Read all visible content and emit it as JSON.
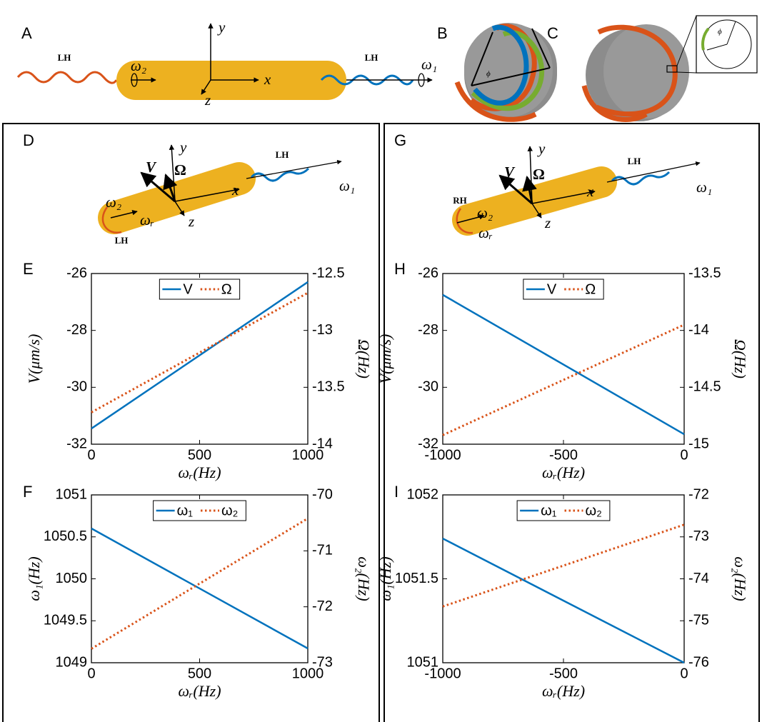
{
  "figure": {
    "panel_labels": [
      "A",
      "B",
      "C",
      "D",
      "E",
      "F",
      "G",
      "H",
      "I"
    ],
    "panel_a": {
      "left_helix": "LH",
      "right_helix": "LH",
      "omega_2": "ω₂",
      "omega_1": "ω₁",
      "x": "x",
      "y": "y",
      "z": "z"
    },
    "panel_b": {
      "phi": "ϕ"
    },
    "panel_c": {
      "phi": "ϕ"
    },
    "panel_d": {
      "y": "y",
      "x": "x",
      "z": "z",
      "v": "V",
      "omega": "Ω",
      "right_helix": "LH",
      "omega_1": "ω₁",
      "omega_2": "ω₂",
      "omega_r": "ωᵣ",
      "left_helix": "LH"
    },
    "panel_g": {
      "y": "y",
      "x": "x",
      "z": "z",
      "v": "V",
      "omega": "Ω",
      "right_helix": "LH",
      "omega_1": "ω₁",
      "omega_2": "ω₂",
      "omega_r": "ωᵣ",
      "left_helix": "RH"
    }
  },
  "chart_data": [
    {
      "type": "line",
      "x": [
        0,
        1000
      ],
      "xlabel": "ωᵣ(Hz)",
      "ylabel": "V(μm/s)",
      "y2label": "Ω(Hz)",
      "xlim": [
        0,
        1000
      ],
      "xticks": [
        0,
        500,
        1000
      ],
      "ylim": [
        -32,
        -26
      ],
      "yticks": [
        -32,
        -30,
        -28,
        -26
      ],
      "y2lim": [
        -14,
        -12.5
      ],
      "y2ticks": [
        -14,
        -13.5,
        -13,
        -12.5
      ],
      "legend": "upper center",
      "series": [
        {
          "name": "V",
          "color": "#0072bd",
          "values": [
            -31.45,
            -26.3
          ]
        },
        {
          "name": "Ω",
          "color": "#d95319",
          "axis": "y2",
          "style": "dotted",
          "values": [
            -13.72,
            -12.67
          ]
        }
      ]
    },
    {
      "type": "line",
      "x": [
        0,
        1000
      ],
      "xlabel": "ωᵣ(Hz)",
      "ylabel": "ω₁(Hz)",
      "y2label": "ω₂(Hz)",
      "xlim": [
        0,
        1000
      ],
      "xticks": [
        0,
        500,
        1000
      ],
      "ylim": [
        1049,
        1051
      ],
      "yticks": [
        1049,
        1049.5,
        1050,
        1050.5,
        1051
      ],
      "y2lim": [
        -73,
        -70
      ],
      "y2ticks": [
        -73,
        -72,
        -71,
        -70
      ],
      "legend": "upper center",
      "series": [
        {
          "name": "ω₁",
          "color": "#0072bd",
          "values": [
            1050.6,
            1049.17
          ]
        },
        {
          "name": "ω₂",
          "color": "#d95319",
          "axis": "y2",
          "style": "dotted",
          "values": [
            -72.75,
            -70.42
          ]
        }
      ]
    },
    {
      "type": "line",
      "x": [
        -1000,
        0
      ],
      "xlabel": "ωᵣ(Hz)",
      "ylabel": "V(μm/s)",
      "y2label": "Ω(Hz)",
      "xlim": [
        -1000,
        0
      ],
      "xticks": [
        -1000,
        -500,
        0
      ],
      "ylim": [
        -32,
        -26
      ],
      "yticks": [
        -32,
        -30,
        -28,
        -26
      ],
      "y2lim": [
        -15,
        -13.5
      ],
      "y2ticks": [
        -15,
        -14.5,
        -14,
        -13.5
      ],
      "legend": "upper center",
      "series": [
        {
          "name": "V",
          "color": "#0072bd",
          "values": [
            -26.75,
            -31.65
          ]
        },
        {
          "name": "Ω",
          "color": "#d95319",
          "axis": "y2",
          "style": "dotted",
          "values": [
            -14.92,
            -13.95
          ]
        }
      ]
    },
    {
      "type": "line",
      "x": [
        -1000,
        0
      ],
      "xlabel": "ωᵣ(Hz)",
      "ylabel": "ω₁(Hz)",
      "y2label": "ω₂(Hz)",
      "xlim": [
        -1000,
        0
      ],
      "xticks": [
        -1000,
        -500,
        0
      ],
      "ylim": [
        1051,
        1052
      ],
      "yticks": [
        1051,
        1051.5,
        1052
      ],
      "y2lim": [
        -76,
        -72
      ],
      "y2ticks": [
        -76,
        -75,
        -74,
        -73,
        -72
      ],
      "legend": "upper center",
      "series": [
        {
          "name": "ω₁",
          "color": "#0072bd",
          "values": [
            1051.74,
            1051.0
          ]
        },
        {
          "name": "ω₂",
          "color": "#d95319",
          "axis": "y2",
          "style": "dotted",
          "values": [
            -74.66,
            -72.71
          ]
        }
      ]
    }
  ]
}
